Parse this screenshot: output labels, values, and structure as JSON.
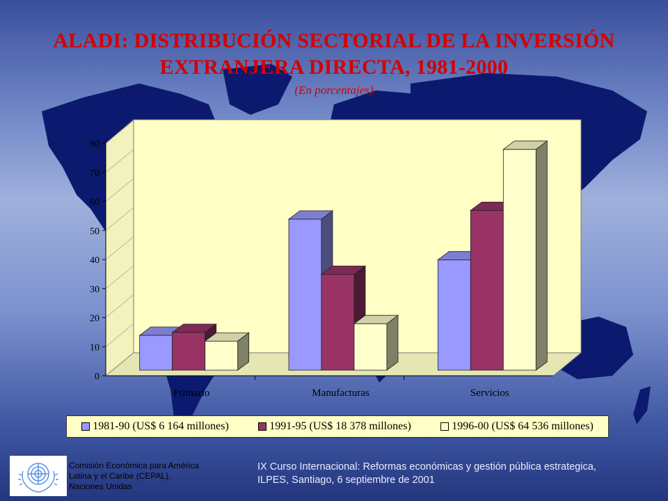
{
  "page": {
    "title_line1": "ALADI: DISTRIBUCIÓN SECTORIAL DE LA INVERSIÓN",
    "title_line2": "EXTRANJERA DIRECTA, 1981-2000",
    "subtitle": "(En porcentajes)"
  },
  "chart_data": {
    "type": "bar",
    "categories": [
      "Primario",
      "Manufacturas",
      "Servicios"
    ],
    "series": [
      {
        "name": "1981-90 (US$ 6 164 millones)",
        "values": [
          12,
          52,
          38
        ],
        "color": "#9999ff"
      },
      {
        "name": "1991-95 (US$ 18 378 millones)",
        "values": [
          13,
          33,
          55
        ],
        "color": "#993366"
      },
      {
        "name": "1996-00 (US$ 64 536 millones)",
        "values": [
          10,
          16,
          76
        ],
        "color": "#ffffcc"
      }
    ],
    "ylim": [
      0,
      80
    ],
    "yticks": [
      "0",
      "10",
      "20",
      "30",
      "40",
      "50",
      "60",
      "70",
      "80"
    ],
    "grid": false,
    "legend_position": "bottom",
    "style": "3d-clustered-column",
    "plot_background": "#ffffc6"
  },
  "footer": {
    "org_line1": "Comisión Económica para América",
    "org_line2": "Latina y el Caribe (CEPAL),",
    "org_line3": "Naciones Unidas",
    "course_line1": "IX Curso Internacional: Reformas económicas y gestión pública estrategica,",
    "course_line2": "ILPES, Santiago, 6 septiembre de 2001"
  },
  "colors": {
    "title": "#d40000",
    "map": "#0a1a6b",
    "background_mid": "#9fb0dc"
  }
}
